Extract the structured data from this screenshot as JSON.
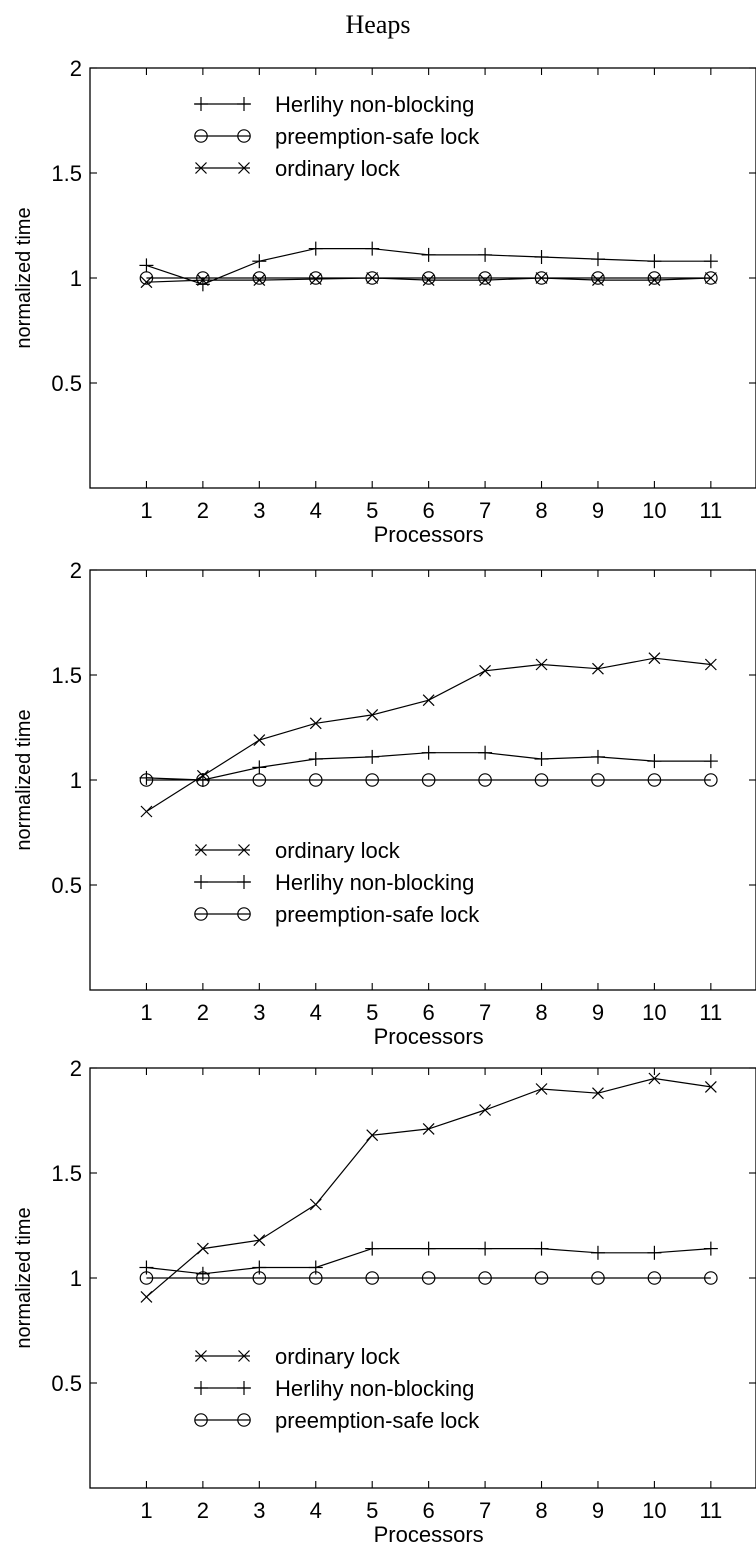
{
  "page": {
    "title": "Heaps"
  },
  "chart_data": [
    {
      "type": "line",
      "title": "",
      "xlabel": "Processors",
      "ylabel": "normalized time",
      "x": [
        1,
        2,
        3,
        4,
        5,
        6,
        7,
        8,
        9,
        10,
        11
      ],
      "xlim": [
        0,
        11.8
      ],
      "ylim": [
        0,
        2
      ],
      "yticks": [
        0.5,
        1,
        1.5,
        2
      ],
      "ytick_labels": [
        "0.5",
        "1",
        "1.5",
        "2"
      ],
      "legend_position": "top-left",
      "legend_order": [
        "Herlihy non-blocking",
        "preemption-safe lock",
        "ordinary lock"
      ],
      "series": [
        {
          "name": "Herlihy non-blocking",
          "marker": "plus",
          "values": [
            1.06,
            0.97,
            1.08,
            1.14,
            1.14,
            1.11,
            1.11,
            1.1,
            1.09,
            1.08,
            1.08
          ]
        },
        {
          "name": "preemption-safe lock",
          "marker": "circle",
          "values": [
            1.0,
            1.0,
            1.0,
            1.0,
            1.0,
            1.0,
            1.0,
            1.0,
            1.0,
            1.0,
            1.0
          ]
        },
        {
          "name": "ordinary lock",
          "marker": "cross",
          "values": [
            0.98,
            0.99,
            0.99,
            0.995,
            1.0,
            0.99,
            0.99,
            1.0,
            0.99,
            0.99,
            1.0
          ]
        }
      ]
    },
    {
      "type": "line",
      "title": "",
      "xlabel": "Processors",
      "ylabel": "normalized time",
      "x": [
        1,
        2,
        3,
        4,
        5,
        6,
        7,
        8,
        9,
        10,
        11
      ],
      "xlim": [
        0,
        11.8
      ],
      "ylim": [
        0,
        2
      ],
      "yticks": [
        0.5,
        1,
        1.5,
        2
      ],
      "ytick_labels": [
        "0.5",
        "1",
        "1.5",
        "2"
      ],
      "legend_position": "bottom-left",
      "legend_order": [
        "ordinary lock",
        "Herlihy non-blocking",
        "preemption-safe lock"
      ],
      "series": [
        {
          "name": "Herlihy non-blocking",
          "marker": "plus",
          "values": [
            1.01,
            1.0,
            1.06,
            1.1,
            1.11,
            1.13,
            1.13,
            1.1,
            1.11,
            1.09,
            1.09
          ]
        },
        {
          "name": "preemption-safe lock",
          "marker": "circle",
          "values": [
            1.0,
            1.0,
            1.0,
            1.0,
            1.0,
            1.0,
            1.0,
            1.0,
            1.0,
            1.0,
            1.0
          ]
        },
        {
          "name": "ordinary lock",
          "marker": "cross",
          "values": [
            0.85,
            1.02,
            1.19,
            1.27,
            1.31,
            1.38,
            1.52,
            1.55,
            1.53,
            1.58,
            1.55
          ]
        }
      ]
    },
    {
      "type": "line",
      "title": "",
      "xlabel": "Processors",
      "ylabel": "normalized time",
      "x": [
        1,
        2,
        3,
        4,
        5,
        6,
        7,
        8,
        9,
        10,
        11
      ],
      "xlim": [
        0,
        11.8
      ],
      "ylim": [
        0,
        2
      ],
      "yticks": [
        0.5,
        1,
        1.5,
        2
      ],
      "ytick_labels": [
        "0.5",
        "1",
        "1.5",
        "2"
      ],
      "legend_position": "bottom-left",
      "legend_order": [
        "ordinary lock",
        "Herlihy non-blocking",
        "preemption-safe lock"
      ],
      "series": [
        {
          "name": "Herlihy non-blocking",
          "marker": "plus",
          "values": [
            1.05,
            1.02,
            1.05,
            1.05,
            1.14,
            1.14,
            1.14,
            1.14,
            1.12,
            1.12,
            1.14
          ]
        },
        {
          "name": "preemption-safe lock",
          "marker": "circle",
          "values": [
            1.0,
            1.0,
            1.0,
            1.0,
            1.0,
            1.0,
            1.0,
            1.0,
            1.0,
            1.0,
            1.0
          ]
        },
        {
          "name": "ordinary lock",
          "marker": "cross",
          "values": [
            0.91,
            1.14,
            1.18,
            1.35,
            1.68,
            1.71,
            1.8,
            1.9,
            1.88,
            1.95,
            1.91
          ]
        }
      ]
    }
  ]
}
